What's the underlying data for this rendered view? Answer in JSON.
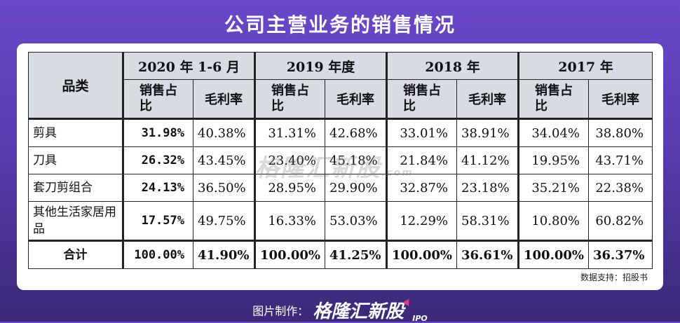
{
  "title": "公司主营业务的销售情况",
  "table": {
    "category_header": "品类",
    "periods": [
      "2020 年 1-6 月",
      "2019 年度",
      "2018 年",
      "2017 年"
    ],
    "sub_headers": {
      "share": "销售占比",
      "margin": "毛利率"
    },
    "rows": [
      {
        "name": "剪具",
        "values": [
          "31.98%",
          "40.38%",
          "31.31%",
          "42.68%",
          "33.01%",
          "38.91%",
          "34.04%",
          "38.80%"
        ]
      },
      {
        "name": "刀具",
        "values": [
          "26.32%",
          "43.45%",
          "23.40%",
          "45.18%",
          "21.84%",
          "41.12%",
          "19.95%",
          "43.71%"
        ]
      },
      {
        "name": "套刀剪组合",
        "values": [
          "24.13%",
          "36.50%",
          "28.95%",
          "29.90%",
          "32.87%",
          "23.18%",
          "35.21%",
          "22.38%"
        ]
      },
      {
        "name": "其他生活家居用品",
        "values": [
          "17.57%",
          "49.75%",
          "16.33%",
          "53.03%",
          "12.29%",
          "58.31%",
          "10.80%",
          "60.82%"
        ]
      }
    ],
    "total": {
      "name": "合计",
      "values": [
        "100.00%",
        "41.90%",
        "100.00%",
        "41.25%",
        "100.00%",
        "36.61%",
        "100.00%",
        "36.37%"
      ]
    }
  },
  "source": "数据支持：招股书",
  "watermark": {
    "text": "格隆汇新股",
    "suffix": ".com"
  },
  "footer": {
    "label": "图片制作：",
    "logo": "格隆汇新股",
    "suffix": "IPO"
  },
  "colors": {
    "background": "#5a3bb0",
    "header_fill": "#d7dbe2",
    "accent": "#e23b7a"
  }
}
